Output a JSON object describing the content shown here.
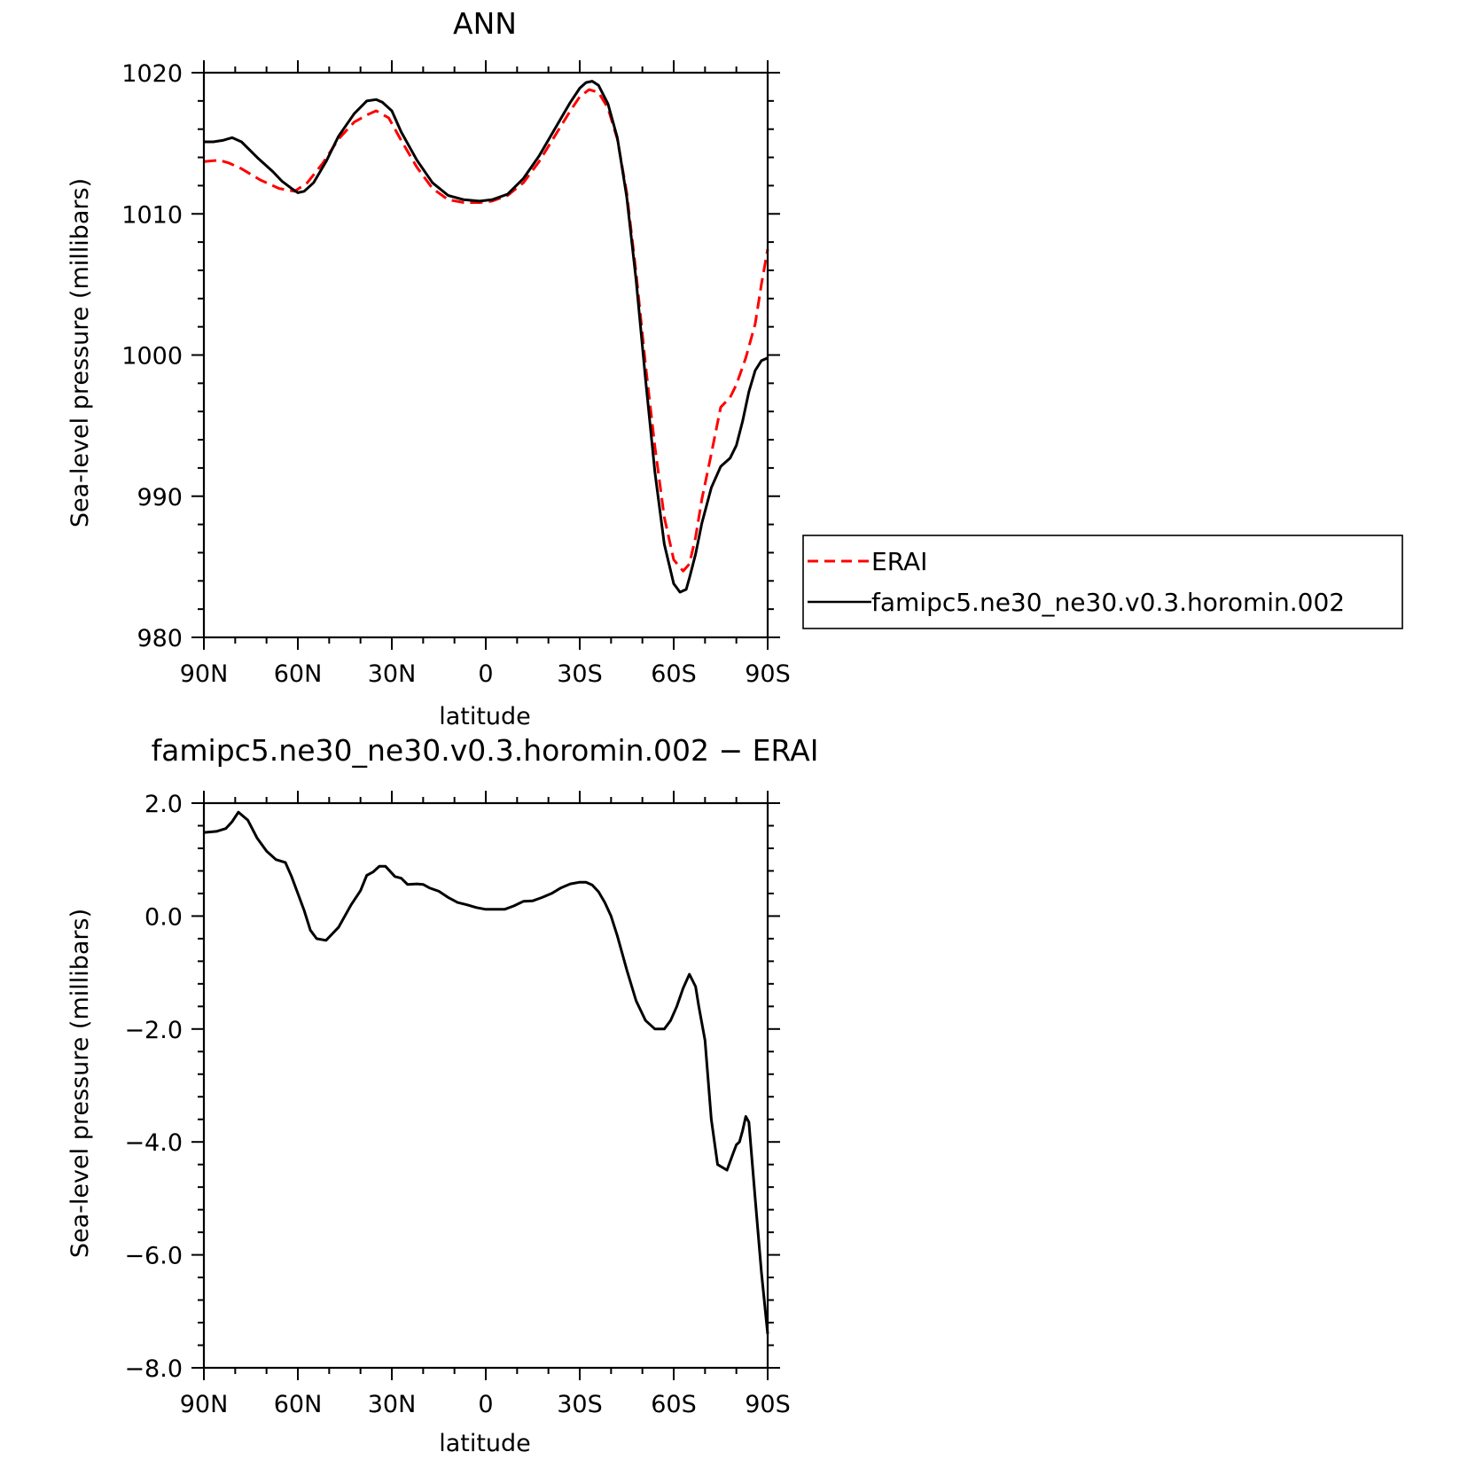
{
  "chart_data": [
    {
      "type": "line",
      "title": "ANN",
      "xlabel": "latitude",
      "ylabel": "Sea-level pressure (millibars)",
      "xticks": [
        "90N",
        "60N",
        "30N",
        "0",
        "30S",
        "60S",
        "90S"
      ],
      "yticks": [
        "1020",
        "1010",
        "1000",
        "990",
        "980"
      ],
      "xlim": [
        90,
        -90
      ],
      "ylim": [
        980,
        1020
      ],
      "legend_position": "right",
      "series": [
        {
          "name": "ERAI",
          "color": "#ff0000",
          "style": "dashed",
          "x": [
            90,
            85,
            82,
            78,
            72,
            66,
            61,
            57,
            52,
            47,
            42,
            38,
            35,
            31,
            27,
            22,
            17,
            12,
            7,
            2,
            -2,
            -7,
            -12,
            -17,
            -22,
            -27,
            -30,
            -33,
            -36,
            -39,
            -42,
            -45,
            -48,
            -51,
            -54,
            -57,
            -60,
            -63,
            -65,
            -67,
            -69,
            -72,
            -75,
            -78,
            -80,
            -83,
            -86,
            -88,
            -90
          ],
          "y": [
            1013.7,
            1013.8,
            1013.6,
            1013.2,
            1012.4,
            1011.8,
            1011.6,
            1012.2,
            1013.6,
            1015.3,
            1016.5,
            1017.0,
            1017.3,
            1016.8,
            1015.2,
            1013.3,
            1011.8,
            1011.0,
            1010.8,
            1010.8,
            1010.9,
            1011.3,
            1012.2,
            1013.7,
            1015.5,
            1017.3,
            1018.3,
            1018.8,
            1018.6,
            1017.5,
            1015.3,
            1011.5,
            1005.8,
            999.3,
            993.5,
            988.5,
            985.5,
            984.7,
            985.2,
            987.1,
            989.8,
            993.0,
            996.3,
            997.0,
            997.9,
            999.8,
            1002.2,
            1005.0,
            1007.5
          ]
        },
        {
          "name": "famipc5.ne30_ne30.v0.3.horomin.002",
          "color": "#000000",
          "style": "solid",
          "x": [
            90,
            87,
            84,
            81,
            78,
            73,
            68,
            65,
            62,
            60,
            58,
            55,
            51,
            47,
            42,
            38,
            35,
            33,
            30,
            27,
            22,
            17,
            12,
            7,
            2,
            -2,
            -7,
            -12,
            -17,
            -22,
            -27,
            -30,
            -32,
            -34,
            -36,
            -39,
            -42,
            -45,
            -48,
            -51,
            -54,
            -57,
            -60,
            -62,
            -64,
            -65,
            -67,
            -69,
            -72,
            -75,
            -78,
            -80,
            -82,
            -84,
            -86,
            -88,
            -90
          ],
          "y": [
            1015.1,
            1015.1,
            1015.2,
            1015.4,
            1015.1,
            1014.0,
            1013.0,
            1012.3,
            1011.8,
            1011.5,
            1011.6,
            1012.2,
            1013.7,
            1015.5,
            1017.1,
            1018.0,
            1018.1,
            1017.9,
            1017.3,
            1015.8,
            1013.8,
            1012.2,
            1011.3,
            1011.0,
            1010.9,
            1011.0,
            1011.4,
            1012.5,
            1014.1,
            1016.0,
            1017.9,
            1018.9,
            1019.3,
            1019.4,
            1019.1,
            1017.8,
            1015.4,
            1011.2,
            1005.3,
            998.3,
            991.7,
            986.6,
            983.8,
            983.2,
            983.4,
            984.2,
            985.9,
            988.1,
            990.6,
            992.1,
            992.7,
            993.6,
            995.3,
            997.4,
            998.9,
            999.6,
            999.8
          ]
        }
      ]
    },
    {
      "type": "line",
      "title": "famipc5.ne30_ne30.v0.3.horomin.002 − ERAI",
      "xlabel": "latitude",
      "ylabel": "Sea-level pressure (millibars)",
      "xticks": [
        "90N",
        "60N",
        "30N",
        "0",
        "30S",
        "60S",
        "90S"
      ],
      "yticks": [
        "2.0",
        "0.0",
        "−2.0",
        "−4.0",
        "−6.0",
        "−8.0"
      ],
      "xlim": [
        90,
        -90
      ],
      "ylim": [
        -8,
        2
      ],
      "series": [
        {
          "color": "#000000",
          "style": "solid",
          "x": [
            90,
            86,
            83,
            81,
            79,
            76,
            73,
            70,
            67,
            64,
            62,
            60,
            58,
            56,
            54,
            51,
            47,
            43,
            40,
            38,
            36,
            34,
            32,
            29,
            27,
            25,
            22,
            20,
            18,
            15,
            12,
            9,
            6,
            3,
            0,
            -3,
            -6,
            -9,
            -12,
            -15,
            -18,
            -21,
            -24,
            -27,
            -30,
            -32,
            -34,
            -36,
            -38,
            -40,
            -42,
            -45,
            -48,
            -51,
            -54,
            -57,
            -59,
            -61,
            -63,
            -65,
            -67,
            -68,
            -70,
            -72,
            -74,
            -77,
            -79,
            -80,
            -81,
            -82,
            -83,
            -84,
            -86,
            -88,
            -90
          ],
          "y": [
            1.48,
            1.5,
            1.55,
            1.67,
            1.84,
            1.7,
            1.38,
            1.15,
            1.0,
            0.95,
            0.7,
            0.4,
            0.1,
            -0.25,
            -0.4,
            -0.43,
            -0.2,
            0.2,
            0.45,
            0.72,
            0.78,
            0.88,
            0.88,
            0.7,
            0.67,
            0.56,
            0.57,
            0.56,
            0.5,
            0.44,
            0.33,
            0.24,
            0.2,
            0.15,
            0.12,
            0.12,
            0.12,
            0.18,
            0.26,
            0.27,
            0.33,
            0.4,
            0.5,
            0.57,
            0.6,
            0.6,
            0.55,
            0.43,
            0.24,
            0.0,
            -0.35,
            -0.95,
            -1.5,
            -1.85,
            -2.0,
            -2.0,
            -1.85,
            -1.6,
            -1.28,
            -1.03,
            -1.25,
            -1.6,
            -2.2,
            -3.6,
            -4.4,
            -4.5,
            -4.2,
            -4.05,
            -4.0,
            -3.8,
            -3.55,
            -3.65,
            -5.0,
            -6.3,
            -7.4
          ]
        }
      ]
    }
  ]
}
